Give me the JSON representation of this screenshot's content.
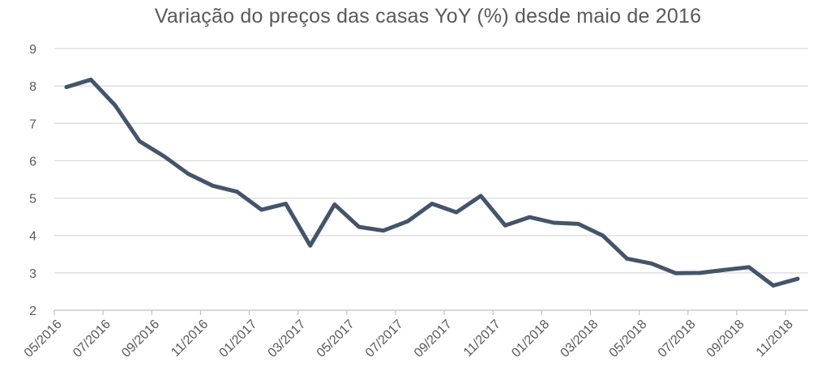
{
  "chart_data": {
    "type": "line",
    "title": "Variação do preços das casas YoY (%) desde maio de 2016",
    "xlabel": "",
    "ylabel": "",
    "ylim": [
      2,
      9
    ],
    "yticks": [
      2,
      3,
      4,
      5,
      6,
      7,
      8,
      9
    ],
    "grid": true,
    "legend": "none",
    "x_tick_labels": [
      "05/2016",
      "07/2016",
      "09/2016",
      "11/2016",
      "01/2017",
      "03/2017",
      "05/2017",
      "07/2017",
      "09/2017",
      "11/2017",
      "01/2018",
      "03/2018",
      "05/2018",
      "07/2018",
      "09/2018",
      "11/2018"
    ],
    "x": [
      "05/2016",
      "06/2016",
      "07/2016",
      "08/2016",
      "09/2016",
      "10/2016",
      "11/2016",
      "12/2016",
      "01/2017",
      "02/2017",
      "03/2017",
      "04/2017",
      "05/2017",
      "06/2017",
      "07/2017",
      "08/2017",
      "09/2017",
      "10/2017",
      "11/2017",
      "12/2017",
      "01/2018",
      "02/2018",
      "03/2018",
      "04/2018",
      "05/2018",
      "06/2018",
      "07/2018",
      "08/2018",
      "09/2018",
      "10/2018",
      "11/2018"
    ],
    "series": [
      {
        "values": [
          7.97,
          8.17,
          7.48,
          6.52,
          6.12,
          5.65,
          5.33,
          5.17,
          4.69,
          4.85,
          3.73,
          4.83,
          4.23,
          4.13,
          4.38,
          4.85,
          4.62,
          5.06,
          4.27,
          4.49,
          4.34,
          4.31,
          4.0,
          3.38,
          3.25,
          2.99,
          3.0,
          3.08,
          3.15,
          2.66,
          2.84
        ],
        "color": "#44546a"
      }
    ]
  }
}
